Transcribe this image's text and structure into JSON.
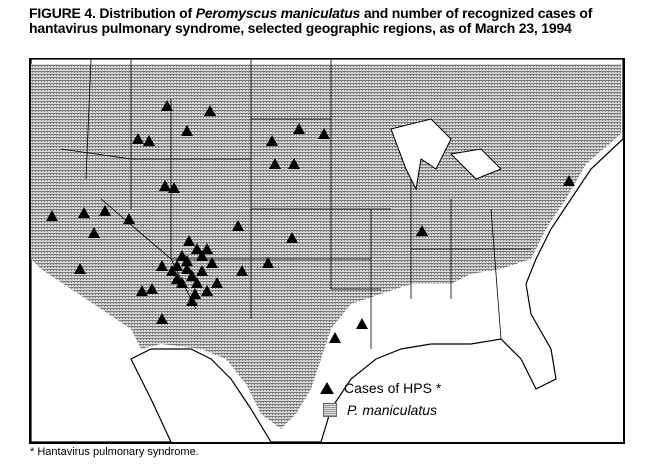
{
  "figure": {
    "title_prefix": "FIGURE 4. Distribution of ",
    "title_species": "Peromyscus maniculatus",
    "title_suffix": " and number of recognized cases of hantavirus pulmonary syndrome, selected geographic regions, as of March 23, 1994"
  },
  "legend": {
    "cases_label": "Cases of HPS *",
    "species_label": "P. maniculatus",
    "cases_symbol": "triangle",
    "species_symbol": "gray-stipple"
  },
  "footnote": "* Hantavirus pulmonary syndrome.",
  "colors": {
    "range_fill": "#9a9a9a",
    "marker": "#000000",
    "outline": "#000000"
  }
}
